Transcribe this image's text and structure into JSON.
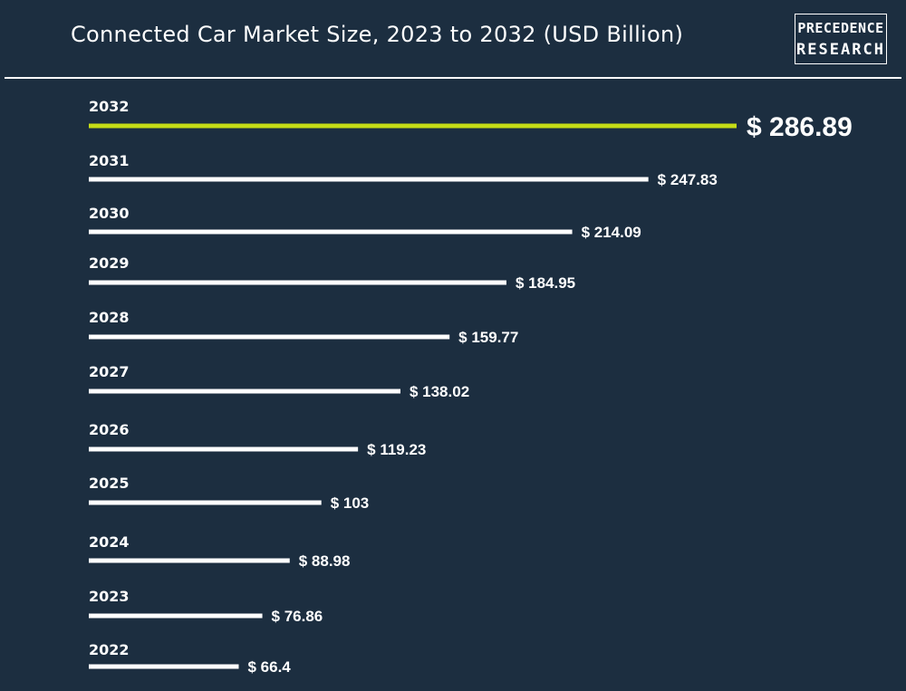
{
  "header": {
    "title": "Connected Car Market Size, 2023 to 2032 (USD Billion)",
    "logo_line1": "PRECEDENCE",
    "logo_line2": "RESEARCH"
  },
  "colors": {
    "background": "#1c2e40",
    "bar": "#ffffff",
    "highlight": "#c5dc16",
    "text": "#ffffff"
  },
  "chart_data": {
    "type": "bar",
    "orientation": "horizontal",
    "title": "Connected Car Market Size, 2023 to 2032 (USD Billion)",
    "categories": [
      "2032",
      "2031",
      "2030",
      "2029",
      "2028",
      "2027",
      "2026",
      "2025",
      "2024",
      "2023",
      "2022"
    ],
    "values": [
      286.89,
      247.83,
      214.09,
      184.95,
      159.77,
      138.02,
      119.23,
      103,
      88.98,
      76.86,
      66.4
    ],
    "labels": [
      "$ 286.89",
      "$ 247.83",
      "$ 214.09",
      "$ 184.95",
      "$ 159.77",
      "$ 138.02",
      "$ 119.23",
      "$ 103",
      "$ 88.98",
      "$ 76.86",
      "$ 66.4"
    ],
    "highlight_index": 0,
    "xlabel": "",
    "ylabel": "",
    "grid": false,
    "legend": "none"
  }
}
